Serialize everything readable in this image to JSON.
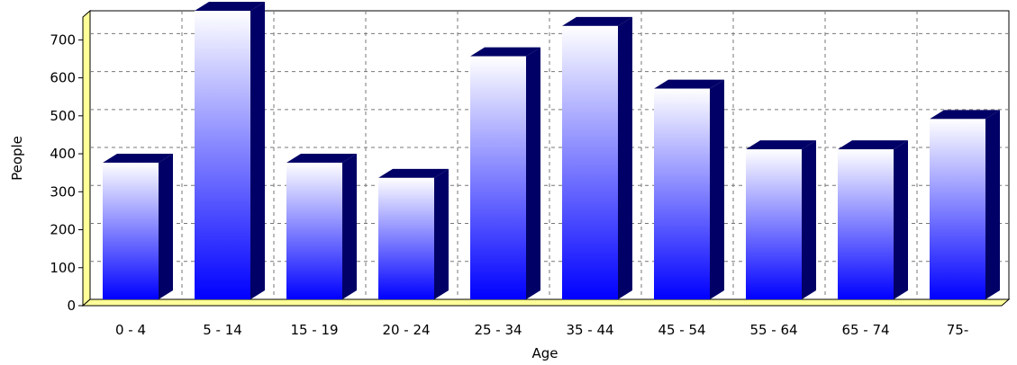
{
  "chart_data": {
    "type": "bar",
    "title": "",
    "xlabel": "Age",
    "ylabel": "People",
    "categories": [
      "0 - 4",
      "5 - 14",
      "15 - 19",
      "20 - 24",
      "25 - 34",
      "35 - 44",
      "45 - 54",
      "55 - 64",
      "65 - 74",
      "75-"
    ],
    "values": [
      360,
      760,
      360,
      320,
      640,
      720,
      555,
      395,
      395,
      475
    ],
    "ylim": [
      0,
      760
    ],
    "yticks": [
      0,
      100,
      200,
      300,
      400,
      500,
      600,
      700
    ],
    "grid": true,
    "style_3d": true,
    "colors": {
      "bar_top": "#ffffff",
      "bar_bottom": "#0000ff",
      "bar_side": "#000066",
      "floor": "#ffff99",
      "grid": "#777777"
    }
  }
}
